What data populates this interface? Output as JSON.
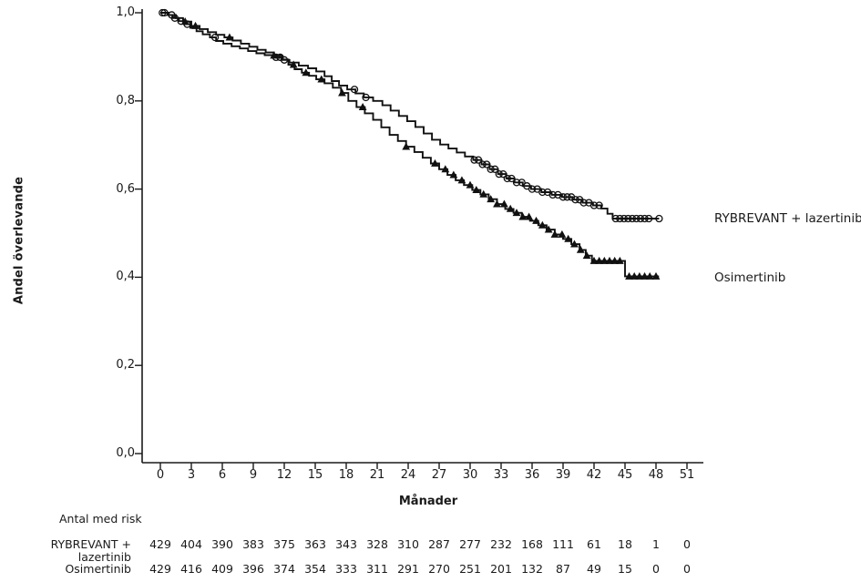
{
  "chart_data": {
    "type": "line",
    "subtype": "kaplan_meier_step",
    "title": "",
    "xlabel": "Månader",
    "ylabel": "Andel överlevande",
    "xlim": [
      0,
      51
    ],
    "ylim": [
      0.0,
      1.0
    ],
    "grid": false,
    "legend_position": "right-outside",
    "xticks": [
      0,
      3,
      6,
      9,
      12,
      15,
      18,
      21,
      24,
      27,
      30,
      33,
      36,
      39,
      42,
      45,
      48,
      51
    ],
    "yticks": [
      {
        "value": 1.0,
        "label": "1,0"
      },
      {
        "value": 0.8,
        "label": "0,8"
      },
      {
        "value": 0.6,
        "label": "0,6"
      },
      {
        "value": 0.4,
        "label": "0,4"
      },
      {
        "value": 0.2,
        "label": "0,2"
      },
      {
        "value": 0.0,
        "label": "0,0"
      }
    ],
    "series": [
      {
        "name": "RYBREVANT + lazertinib",
        "marker": "open-circle",
        "color": "#111111",
        "steps": [
          [
            0,
            1.0
          ],
          [
            0.7,
            0.995
          ],
          [
            1.2,
            0.988
          ],
          [
            1.8,
            0.981
          ],
          [
            2.3,
            0.974
          ],
          [
            2.9,
            0.966
          ],
          [
            3.5,
            0.958
          ],
          [
            4.1,
            0.951
          ],
          [
            4.8,
            0.944
          ],
          [
            5.4,
            0.936
          ],
          [
            6.1,
            0.93
          ],
          [
            6.9,
            0.924
          ],
          [
            7.7,
            0.919
          ],
          [
            8.5,
            0.913
          ],
          [
            9.3,
            0.908
          ],
          [
            10.1,
            0.904
          ],
          [
            10.9,
            0.899
          ],
          [
            11.7,
            0.893
          ],
          [
            12.5,
            0.887
          ],
          [
            13.4,
            0.88
          ],
          [
            14.3,
            0.874
          ],
          [
            15.1,
            0.867
          ],
          [
            15.9,
            0.856
          ],
          [
            16.6,
            0.845
          ],
          [
            17.3,
            0.835
          ],
          [
            18.1,
            0.826
          ],
          [
            18.9,
            0.817
          ],
          [
            19.7,
            0.808
          ],
          [
            20.6,
            0.8
          ],
          [
            21.5,
            0.79
          ],
          [
            22.3,
            0.778
          ],
          [
            23.1,
            0.766
          ],
          [
            23.9,
            0.754
          ],
          [
            24.7,
            0.741
          ],
          [
            25.5,
            0.726
          ],
          [
            26.3,
            0.712
          ],
          [
            27.1,
            0.701
          ],
          [
            27.9,
            0.692
          ],
          [
            28.7,
            0.683
          ],
          [
            29.5,
            0.674
          ],
          [
            30.3,
            0.666
          ],
          [
            31.1,
            0.656
          ],
          [
            31.9,
            0.645
          ],
          [
            32.7,
            0.634
          ],
          [
            33.5,
            0.624
          ],
          [
            34.3,
            0.615
          ],
          [
            35.1,
            0.607
          ],
          [
            35.9,
            0.6
          ],
          [
            36.9,
            0.593
          ],
          [
            37.9,
            0.587
          ],
          [
            38.9,
            0.582
          ],
          [
            39.9,
            0.576
          ],
          [
            40.9,
            0.569
          ],
          [
            41.9,
            0.563
          ],
          [
            42.7,
            0.556
          ],
          [
            43.3,
            0.544
          ],
          [
            43.8,
            0.533
          ],
          [
            48.3,
            0.533
          ]
        ],
        "censor_times": [
          0.2,
          0.4,
          1.1,
          1.4,
          2.0,
          2.6,
          5.3,
          11.2,
          11.6,
          12.0,
          18.8,
          19.9,
          30.4,
          30.8,
          31.2,
          31.6,
          32.0,
          32.4,
          32.8,
          33.2,
          33.6,
          34.0,
          34.5,
          35.0,
          35.5,
          36.0,
          36.5,
          37.0,
          37.5,
          38.0,
          38.5,
          39.0,
          39.4,
          39.8,
          40.2,
          40.6,
          41.0,
          41.5,
          42.0,
          42.5,
          44.1,
          44.5,
          44.9,
          45.3,
          45.7,
          46.1,
          46.5,
          46.9,
          47.3,
          48.3
        ],
        "end_value": 0.53
      },
      {
        "name": "Osimertinib",
        "marker": "filled-triangle",
        "color": "#111111",
        "steps": [
          [
            0,
            1.0
          ],
          [
            0.8,
            0.995
          ],
          [
            1.5,
            0.988
          ],
          [
            2.2,
            0.98
          ],
          [
            3.0,
            0.97
          ],
          [
            3.8,
            0.963
          ],
          [
            4.6,
            0.956
          ],
          [
            5.4,
            0.95
          ],
          [
            6.2,
            0.944
          ],
          [
            7.0,
            0.937
          ],
          [
            7.8,
            0.93
          ],
          [
            8.6,
            0.923
          ],
          [
            9.4,
            0.916
          ],
          [
            10.2,
            0.91
          ],
          [
            11.0,
            0.903
          ],
          [
            11.8,
            0.894
          ],
          [
            12.4,
            0.882
          ],
          [
            13.0,
            0.872
          ],
          [
            13.7,
            0.864
          ],
          [
            14.4,
            0.857
          ],
          [
            15.1,
            0.849
          ],
          [
            15.9,
            0.84
          ],
          [
            16.7,
            0.83
          ],
          [
            17.5,
            0.818
          ],
          [
            18.2,
            0.8
          ],
          [
            19.0,
            0.786
          ],
          [
            19.8,
            0.772
          ],
          [
            20.6,
            0.757
          ],
          [
            21.4,
            0.74
          ],
          [
            22.2,
            0.723
          ],
          [
            23.0,
            0.709
          ],
          [
            23.8,
            0.696
          ],
          [
            24.6,
            0.684
          ],
          [
            25.4,
            0.671
          ],
          [
            26.2,
            0.658
          ],
          [
            27.0,
            0.645
          ],
          [
            27.8,
            0.632
          ],
          [
            28.6,
            0.62
          ],
          [
            29.4,
            0.609
          ],
          [
            30.2,
            0.598
          ],
          [
            31.0,
            0.588
          ],
          [
            31.8,
            0.577
          ],
          [
            32.6,
            0.566
          ],
          [
            33.4,
            0.555
          ],
          [
            34.2,
            0.546
          ],
          [
            35.0,
            0.537
          ],
          [
            35.8,
            0.528
          ],
          [
            36.6,
            0.518
          ],
          [
            37.4,
            0.508
          ],
          [
            38.2,
            0.497
          ],
          [
            39.0,
            0.487
          ],
          [
            39.8,
            0.475
          ],
          [
            40.6,
            0.462
          ],
          [
            41.2,
            0.449
          ],
          [
            41.8,
            0.437
          ],
          [
            45.0,
            0.402
          ],
          [
            48.2,
            0.399
          ]
        ],
        "censor_times": [
          2.4,
          3.4,
          6.7,
          11.0,
          12.9,
          14.1,
          15.6,
          17.6,
          19.6,
          23.8,
          26.6,
          27.6,
          28.4,
          29.2,
          30.0,
          30.6,
          31.3,
          32.0,
          32.6,
          33.3,
          33.9,
          34.5,
          35.1,
          35.7,
          36.4,
          37.0,
          37.6,
          38.2,
          38.9,
          39.5,
          40.1,
          40.7,
          41.3,
          42.0,
          42.5,
          43.0,
          43.5,
          44.0,
          44.5,
          45.4,
          45.9,
          46.4,
          46.9,
          47.4,
          48.0
        ],
        "end_value": 0.4
      }
    ],
    "risk_table": {
      "title": "Antal med risk",
      "times": [
        0,
        3,
        6,
        9,
        12,
        15,
        18,
        21,
        24,
        27,
        30,
        33,
        36,
        39,
        42,
        45,
        48,
        51
      ],
      "rows": [
        {
          "label": "RYBREVANT + lazertinib",
          "values": [
            429,
            404,
            390,
            383,
            375,
            363,
            343,
            328,
            310,
            287,
            277,
            232,
            168,
            111,
            61,
            18,
            1,
            0
          ]
        },
        {
          "label": "Osimertinib",
          "values": [
            429,
            416,
            409,
            396,
            374,
            354,
            333,
            311,
            291,
            270,
            251,
            201,
            132,
            87,
            49,
            15,
            0,
            0
          ]
        }
      ]
    }
  },
  "colors": {
    "curve": "#111111",
    "axis": "#1a1a1a",
    "background": "#ffffff"
  }
}
